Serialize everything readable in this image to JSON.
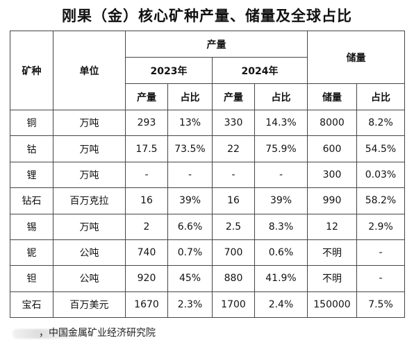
{
  "title": "刚果（金）核心矿种产量、储量及全球占比",
  "table": {
    "headers": {
      "mineral": "矿种",
      "unit": "单位",
      "production": "产量",
      "reserves": "储量",
      "year_2023": "2023年",
      "year_2024": "2024年",
      "sub_production": "产量",
      "sub_share": "占比",
      "sub_reserves": "储量"
    },
    "rows": [
      {
        "mineral": "铜",
        "unit": "万吨",
        "p2023": "293",
        "s2023": "13%",
        "p2024": "330",
        "s2024": "14.3%",
        "reserve": "8000",
        "rshare": "8.2%"
      },
      {
        "mineral": "钴",
        "unit": "万吨",
        "p2023": "17.5",
        "s2023": "73.5%",
        "p2024": "22",
        "s2024": "75.9%",
        "reserve": "600",
        "rshare": "54.5%"
      },
      {
        "mineral": "锂",
        "unit": "万吨",
        "p2023": "-",
        "s2023": "-",
        "p2024": "-",
        "s2024": "-",
        "reserve": "300",
        "rshare": "0.03%"
      },
      {
        "mineral": "钻石",
        "unit": "百万克拉",
        "p2023": "16",
        "s2023": "39%",
        "p2024": "16",
        "s2024": "39%",
        "reserve": "990",
        "rshare": "58.2%"
      },
      {
        "mineral": "锡",
        "unit": "万吨",
        "p2023": "2",
        "s2023": "6.6%",
        "p2024": "2.5",
        "s2024": "8.3%",
        "reserve": "12",
        "rshare": "2.9%"
      },
      {
        "mineral": "铌",
        "unit": "公吨",
        "p2023": "740",
        "s2023": "0.7%",
        "p2024": "700",
        "s2024": "0.6%",
        "reserve": "不明",
        "rshare": "-"
      },
      {
        "mineral": "钽",
        "unit": "公吨",
        "p2023": "920",
        "s2023": "45%",
        "p2024": "880",
        "s2024": "41.9%",
        "reserve": "不明",
        "rshare": "-"
      },
      {
        "mineral": "宝石",
        "unit": "百万美元",
        "p2023": "1670",
        "s2023": "2.3%",
        "p2024": "1700",
        "s2024": "2.4%",
        "reserve": "150000",
        "rshare": "7.5%"
      }
    ]
  },
  "source": "，中国金属矿业经济研究院"
}
